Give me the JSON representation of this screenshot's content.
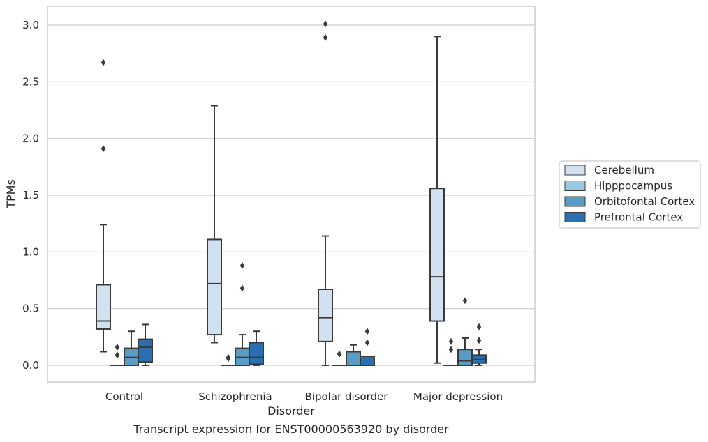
{
  "caption": "Transcript expression for ENST00000563920 by disorder",
  "chart_data": {
    "type": "box",
    "xlabel": "Disorder",
    "ylabel": "TPMs",
    "ylim": [
      -0.15,
      3.17
    ],
    "yticks": [
      0.0,
      0.5,
      1.0,
      1.5,
      2.0,
      2.5,
      3.0
    ],
    "ytick_labels": [
      "0.0",
      "0.5",
      "1.0",
      "1.5",
      "2.0",
      "2.5",
      "3.0"
    ],
    "grid": "horizontal",
    "legend_position": "right",
    "categories": [
      "Control",
      "Schizophrenia",
      "Bipolar disorder",
      "Major depression"
    ],
    "series": [
      {
        "name": "Cerebellum",
        "color": "#d2e1f0",
        "boxes": [
          {
            "whislo": 0.12,
            "q1": 0.32,
            "med": 0.39,
            "q3": 0.71,
            "whishi": 1.24,
            "fliers": [
              1.91,
              2.67
            ]
          },
          {
            "whislo": 0.2,
            "q1": 0.27,
            "med": 0.72,
            "q3": 1.11,
            "whishi": 2.29,
            "fliers": []
          },
          {
            "whislo": 0.0,
            "q1": 0.21,
            "med": 0.42,
            "q3": 0.67,
            "whishi": 1.14,
            "fliers": [
              2.89,
              3.01
            ]
          },
          {
            "whislo": 0.02,
            "q1": 0.39,
            "med": 0.78,
            "q3": 1.56,
            "whishi": 2.9,
            "fliers": []
          }
        ]
      },
      {
        "name": "Hipppocampus",
        "color": "#9ac8e0",
        "boxes": [
          {
            "whislo": 0.0,
            "q1": 0.0,
            "med": 0.0,
            "q3": 0.0,
            "whishi": 0.0,
            "fliers": [
              0.09,
              0.16
            ]
          },
          {
            "whislo": 0.0,
            "q1": 0.0,
            "med": 0.0,
            "q3": 0.0,
            "whishi": 0.0,
            "fliers": [
              0.06,
              0.07
            ]
          },
          {
            "whislo": 0.0,
            "q1": 0.0,
            "med": 0.0,
            "q3": 0.0,
            "whishi": 0.0,
            "fliers": [
              0.1
            ]
          },
          {
            "whislo": 0.0,
            "q1": 0.0,
            "med": 0.0,
            "q3": 0.0,
            "whishi": 0.0,
            "fliers": [
              0.14,
              0.21
            ]
          }
        ]
      },
      {
        "name": "Orbitofontal Cortex",
        "color": "#5b9cc7",
        "boxes": [
          {
            "whislo": 0.0,
            "q1": 0.0,
            "med": 0.07,
            "q3": 0.15,
            "whishi": 0.3,
            "fliers": []
          },
          {
            "whislo": 0.0,
            "q1": 0.0,
            "med": 0.07,
            "q3": 0.15,
            "whishi": 0.27,
            "fliers": [
              0.68,
              0.88
            ]
          },
          {
            "whislo": 0.0,
            "q1": 0.0,
            "med": 0.0,
            "q3": 0.12,
            "whishi": 0.18,
            "fliers": []
          },
          {
            "whislo": 0.0,
            "q1": 0.0,
            "med": 0.04,
            "q3": 0.14,
            "whishi": 0.24,
            "fliers": [
              0.57
            ]
          }
        ]
      },
      {
        "name": "Prefrontal Cortex",
        "color": "#2a6faf",
        "boxes": [
          {
            "whislo": 0.0,
            "q1": 0.03,
            "med": 0.16,
            "q3": 0.23,
            "whishi": 0.36,
            "fliers": []
          },
          {
            "whislo": 0.0,
            "q1": 0.01,
            "med": 0.07,
            "q3": 0.2,
            "whishi": 0.3,
            "fliers": []
          },
          {
            "whislo": 0.0,
            "q1": 0.0,
            "med": 0.0,
            "q3": 0.08,
            "whishi": 0.08,
            "fliers": [
              0.2,
              0.3
            ]
          },
          {
            "whislo": 0.0,
            "q1": 0.02,
            "med": 0.05,
            "q3": 0.09,
            "whishi": 0.14,
            "fliers": [
              0.22,
              0.34
            ]
          }
        ]
      }
    ]
  }
}
